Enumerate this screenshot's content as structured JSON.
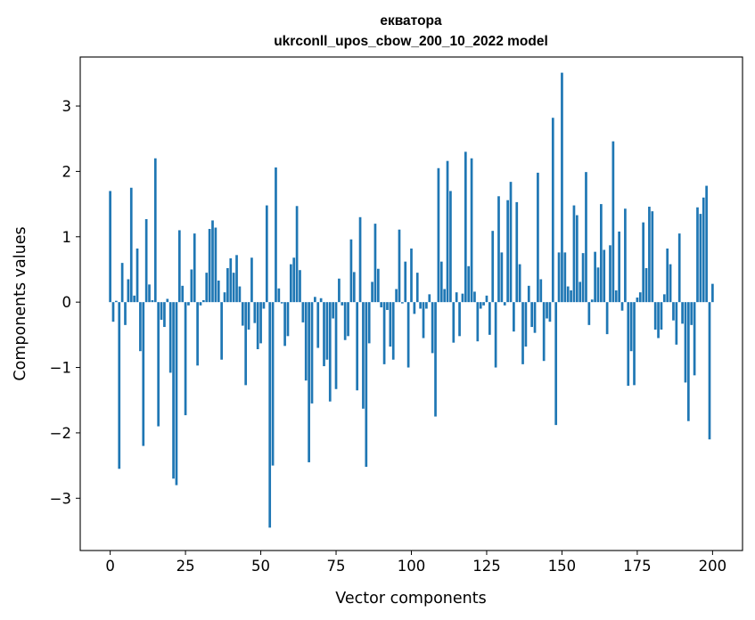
{
  "chart_data": {
    "type": "bar",
    "title": "екватора",
    "subtitle": "ukrconll_upos_cbow_200_10_2022 model",
    "xlabel": "Vector components",
    "ylabel": "Components values",
    "xlim": [
      -9.95,
      209.95
    ],
    "ylim": [
      -3.8,
      3.75
    ],
    "xticks": [
      0,
      25,
      50,
      75,
      100,
      125,
      150,
      175,
      200
    ],
    "yticks": [
      -3,
      -2,
      -1,
      0,
      1,
      2,
      3
    ],
    "bar_color": "#1f77b4",
    "grid": false,
    "legend": "none",
    "values": [
      1.7,
      -0.3,
      0.02,
      -2.55,
      0.6,
      -0.35,
      0.35,
      1.75,
      0.1,
      0.82,
      -0.75,
      -2.2,
      1.27,
      0.27,
      0.03,
      2.2,
      -1.9,
      -0.27,
      -0.38,
      0.05,
      -1.08,
      -2.7,
      -2.8,
      1.1,
      0.25,
      -1.73,
      -0.05,
      0.5,
      1.05,
      -0.97,
      -0.05,
      0.03,
      0.45,
      1.12,
      1.25,
      1.14,
      0.33,
      -0.88,
      0.15,
      0.52,
      0.67,
      0.45,
      0.72,
      0.24,
      -0.36,
      -1.27,
      -0.42,
      0.68,
      -0.32,
      -0.72,
      -0.63,
      -0.1,
      1.48,
      -3.45,
      -2.5,
      2.06,
      0.21,
      -0.02,
      -0.67,
      -0.52,
      0.58,
      0.68,
      1.47,
      0.49,
      -0.31,
      -1.2,
      -2.45,
      -1.55,
      0.08,
      -0.7,
      0.06,
      -0.98,
      -0.88,
      -1.52,
      -0.25,
      -1.33,
      0.36,
      -0.05,
      -0.58,
      -0.52,
      0.96,
      0.46,
      -1.35,
      1.3,
      -1.63,
      -2.52,
      -0.63,
      0.31,
      1.2,
      0.51,
      -0.08,
      -0.95,
      -0.12,
      -0.68,
      -0.88,
      0.2,
      1.11,
      -0.02,
      0.62,
      -1.0,
      0.82,
      -0.18,
      0.45,
      -0.1,
      -0.55,
      -0.1,
      0.12,
      -0.78,
      -1.75,
      2.05,
      0.62,
      0.2,
      2.16,
      1.7,
      -0.62,
      0.15,
      -0.52,
      0.13,
      2.3,
      0.55,
      2.2,
      0.16,
      -0.6,
      -0.1,
      -0.05,
      0.1,
      -0.5,
      1.09,
      -1.0,
      1.62,
      0.76,
      -0.05,
      1.56,
      1.84,
      -0.45,
      1.53,
      0.58,
      -0.95,
      -0.68,
      0.25,
      -0.38,
      -0.47,
      1.98,
      0.35,
      -0.9,
      -0.25,
      -0.3,
      2.82,
      -1.88,
      0.76,
      3.51,
      0.76,
      0.24,
      0.18,
      1.48,
      1.33,
      0.31,
      0.75,
      1.99,
      -0.35,
      0.04,
      0.77,
      0.53,
      1.5,
      0.8,
      -0.49,
      0.87,
      2.46,
      0.18,
      1.08,
      -0.13,
      1.43,
      -1.28,
      -0.75,
      -1.27,
      0.07,
      0.15,
      1.22,
      0.52,
      1.46,
      1.39,
      -0.42,
      -0.55,
      -0.42,
      0.12,
      0.82,
      0.58,
      -0.28,
      -0.65,
      1.05,
      -0.33,
      -1.23,
      -1.82,
      -0.35,
      -1.12,
      1.45,
      1.35,
      1.6,
      1.78,
      -2.1,
      0.28
    ]
  }
}
